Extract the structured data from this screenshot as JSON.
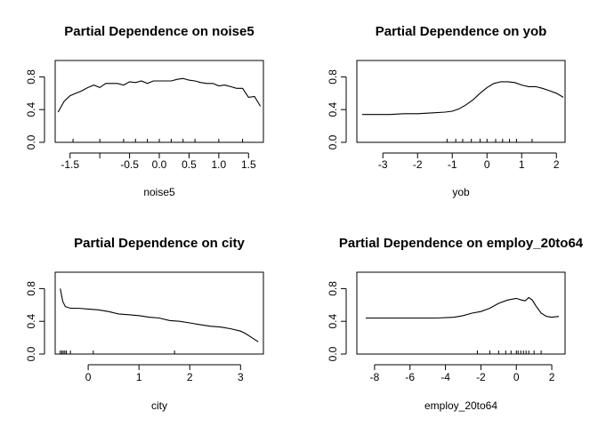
{
  "chart_data": [
    {
      "type": "line",
      "title": "Partial Dependence on noise5",
      "xlabel": "noise5",
      "ylabel": "",
      "xlim": [
        -1.75,
        1.75
      ],
      "ylim": [
        0,
        1
      ],
      "xticks": [
        -1.5,
        -1.0,
        -0.5,
        0.0,
        0.5,
        1.0,
        1.5
      ],
      "xtick_labels": [
        "-1.5",
        "",
        "-0.5",
        "0.0",
        "0.5",
        "1.0",
        "1.5"
      ],
      "yticks": [
        0.0,
        0.4,
        0.8
      ],
      "ytick_labels": [
        "0.0",
        "0.4",
        "0.8"
      ],
      "rug": [
        -1.45,
        -1.0,
        -0.6,
        -0.4,
        -0.2,
        0.0,
        0.2,
        0.4,
        0.6,
        1.0,
        1.4
      ],
      "series": [
        {
          "x": [
            -1.7,
            -1.6,
            -1.5,
            -1.4,
            -1.3,
            -1.2,
            -1.1,
            -1.0,
            -0.9,
            -0.8,
            -0.7,
            -0.6,
            -0.5,
            -0.4,
            -0.3,
            -0.2,
            -0.1,
            0.0,
            0.1,
            0.2,
            0.3,
            0.4,
            0.5,
            0.6,
            0.7,
            0.8,
            0.9,
            1.0,
            1.1,
            1.2,
            1.3,
            1.4,
            1.5,
            1.6,
            1.7
          ],
          "y": [
            0.37,
            0.5,
            0.57,
            0.6,
            0.63,
            0.67,
            0.7,
            0.67,
            0.72,
            0.72,
            0.72,
            0.7,
            0.74,
            0.73,
            0.75,
            0.72,
            0.75,
            0.75,
            0.75,
            0.75,
            0.77,
            0.78,
            0.76,
            0.75,
            0.73,
            0.72,
            0.72,
            0.69,
            0.7,
            0.68,
            0.66,
            0.66,
            0.55,
            0.56,
            0.44
          ]
        }
      ]
    },
    {
      "type": "line",
      "title": "Partial Dependence on yob",
      "xlabel": "yob",
      "ylabel": "",
      "xlim": [
        -3.75,
        2.25
      ],
      "ylim": [
        0,
        1
      ],
      "xticks": [
        -3,
        -2,
        -1,
        0,
        1,
        2
      ],
      "xtick_labels": [
        "-3",
        "-2",
        "-1",
        "0",
        "1",
        "2"
      ],
      "yticks": [
        0.0,
        0.4,
        0.8
      ],
      "ytick_labels": [
        "0.0",
        "0.4",
        "0.8"
      ],
      "rug": [
        -1.15,
        -0.9,
        -0.7,
        -0.45,
        -0.2,
        0.0,
        0.25,
        0.45,
        0.65,
        0.85,
        1.3
      ],
      "series": [
        {
          "x": [
            -3.6,
            -3.2,
            -2.8,
            -2.4,
            -2.0,
            -1.6,
            -1.2,
            -1.0,
            -0.8,
            -0.6,
            -0.4,
            -0.2,
            0.0,
            0.2,
            0.4,
            0.6,
            0.8,
            1.0,
            1.2,
            1.4,
            1.6,
            1.8,
            2.0,
            2.2
          ],
          "y": [
            0.34,
            0.34,
            0.34,
            0.35,
            0.35,
            0.36,
            0.37,
            0.38,
            0.41,
            0.46,
            0.52,
            0.6,
            0.67,
            0.72,
            0.74,
            0.74,
            0.73,
            0.7,
            0.68,
            0.68,
            0.66,
            0.63,
            0.6,
            0.55
          ]
        }
      ]
    },
    {
      "type": "line",
      "title": "Partial Dependence on city",
      "xlabel": "city",
      "ylabel": "",
      "xlim": [
        -0.65,
        3.45
      ],
      "ylim": [
        0,
        1
      ],
      "xticks": [
        0,
        1,
        2,
        3
      ],
      "xtick_labels": [
        "0",
        "1",
        "2",
        "3"
      ],
      "yticks": [
        0.0,
        0.4,
        0.8
      ],
      "ytick_labels": [
        "0.0",
        "0.4",
        "0.8"
      ],
      "rug": [
        -0.55,
        -0.52,
        -0.49,
        -0.46,
        -0.43,
        -0.35,
        0.1,
        1.7
      ],
      "series": [
        {
          "x": [
            -0.55,
            -0.5,
            -0.45,
            -0.35,
            -0.2,
            0.0,
            0.2,
            0.4,
            0.6,
            0.8,
            1.0,
            1.2,
            1.4,
            1.6,
            1.8,
            2.0,
            2.2,
            2.4,
            2.6,
            2.8,
            3.0,
            3.1,
            3.2,
            3.3,
            3.35
          ],
          "y": [
            0.8,
            0.64,
            0.58,
            0.56,
            0.56,
            0.55,
            0.54,
            0.52,
            0.49,
            0.48,
            0.47,
            0.45,
            0.44,
            0.41,
            0.4,
            0.38,
            0.36,
            0.34,
            0.33,
            0.31,
            0.28,
            0.25,
            0.21,
            0.17,
            0.15
          ]
        }
      ]
    },
    {
      "type": "line",
      "title": "Partial Dependence on employ_20to64",
      "xlabel": "employ_20to64",
      "ylabel": "",
      "xlim": [
        -9.0,
        2.75
      ],
      "ylim": [
        0,
        1
      ],
      "xticks": [
        -8,
        -6,
        -4,
        -2,
        0,
        2
      ],
      "xtick_labels": [
        "-8",
        "-6",
        "-4",
        "-2",
        "0",
        "2"
      ],
      "yticks": [
        0.0,
        0.4,
        0.8
      ],
      "ytick_labels": [
        "0.0",
        "0.4",
        "0.8"
      ],
      "rug": [
        -2.2,
        -1.5,
        -1.0,
        -0.6,
        -0.3,
        0.0,
        0.1,
        0.25,
        0.4,
        0.55,
        0.7,
        1.0,
        1.4
      ],
      "series": [
        {
          "x": [
            -8.5,
            -7.5,
            -6.5,
            -5.5,
            -4.5,
            -3.5,
            -3.0,
            -2.5,
            -2.0,
            -1.5,
            -1.0,
            -0.5,
            0.0,
            0.3,
            0.5,
            0.7,
            0.9,
            1.1,
            1.4,
            1.7,
            2.0,
            2.4
          ],
          "y": [
            0.44,
            0.44,
            0.44,
            0.44,
            0.44,
            0.45,
            0.47,
            0.5,
            0.52,
            0.56,
            0.62,
            0.66,
            0.68,
            0.66,
            0.65,
            0.69,
            0.66,
            0.59,
            0.5,
            0.46,
            0.45,
            0.46
          ]
        }
      ]
    }
  ]
}
